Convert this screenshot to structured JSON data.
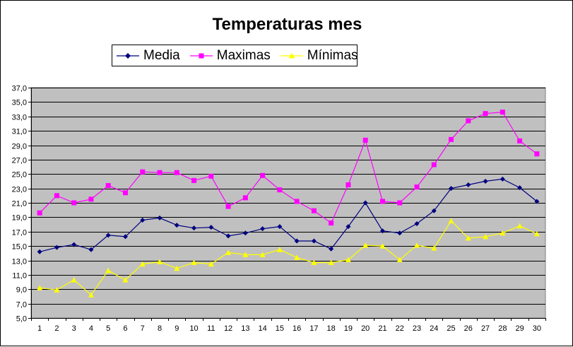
{
  "chart_data": {
    "type": "line",
    "title": "Temperaturas mes",
    "xlabel": "",
    "ylabel": "",
    "ylim": [
      5.0,
      37.0
    ],
    "yticks": [
      "37,0",
      "35,0",
      "33,0",
      "31,0",
      "29,0",
      "27,0",
      "25,0",
      "23,0",
      "21,0",
      "19,0",
      "17,0",
      "15,0",
      "13,0",
      "11,0",
      "9,0",
      "7,0",
      "5,0"
    ],
    "categories": [
      "1",
      "2",
      "3",
      "4",
      "5",
      "6",
      "7",
      "8",
      "9",
      "10",
      "11",
      "12",
      "13",
      "14",
      "15",
      "16",
      "17",
      "18",
      "19",
      "20",
      "21",
      "22",
      "23",
      "24",
      "25",
      "26",
      "27",
      "28",
      "29",
      "30"
    ],
    "grid": true,
    "legend_position": "top",
    "plot_background": "#c0c0c0",
    "series": [
      {
        "name": "Media",
        "color": "#000080",
        "marker": "diamond",
        "values": [
          14.2,
          14.8,
          15.2,
          14.5,
          16.5,
          16.3,
          18.6,
          18.9,
          17.9,
          17.5,
          17.6,
          16.4,
          16.8,
          17.4,
          17.7,
          15.7,
          15.7,
          14.6,
          17.7,
          21.0,
          17.1,
          16.8,
          18.1,
          19.9,
          23.0,
          23.5,
          24.0,
          24.3,
          23.1,
          21.2
        ]
      },
      {
        "name": "Maximas",
        "color": "#ff00ff",
        "marker": "square",
        "values": [
          19.6,
          22.0,
          21.0,
          21.5,
          23.4,
          22.4,
          25.3,
          25.2,
          25.2,
          24.1,
          24.7,
          20.5,
          21.7,
          24.8,
          22.8,
          21.2,
          19.9,
          18.2,
          23.5,
          29.7,
          21.2,
          21.0,
          23.2,
          26.3,
          29.8,
          32.4,
          33.4,
          33.6,
          29.6,
          27.8
        ]
      },
      {
        "name": "Mínimas",
        "color": "#ffff00",
        "marker": "triangle",
        "values": [
          9.2,
          8.9,
          10.3,
          8.2,
          11.6,
          10.3,
          12.5,
          12.8,
          11.9,
          12.7,
          12.5,
          14.1,
          13.8,
          13.8,
          14.5,
          13.4,
          12.7,
          12.7,
          13.1,
          15.1,
          15.0,
          13.1,
          15.1,
          14.7,
          18.5,
          16.1,
          16.3,
          16.8,
          17.8,
          16.7
        ]
      }
    ]
  }
}
